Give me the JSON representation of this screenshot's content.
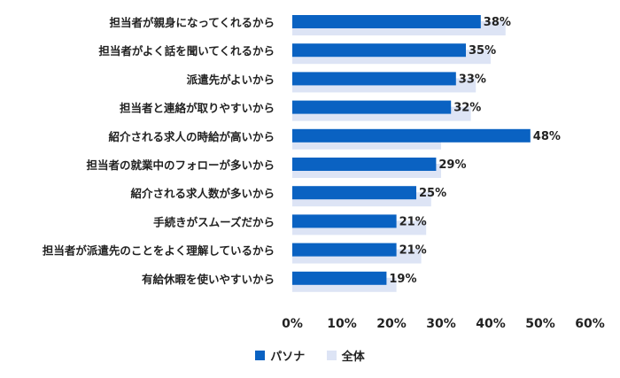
{
  "chart_data": {
    "type": "bar",
    "orientation": "horizontal",
    "categories": [
      "担当者が親身になってくれるから",
      "担当者がよく話を聞いてくれるから",
      "派遣先がよいから",
      "担当者と連絡が取りやすいから",
      "紹介される求人の時給が高いから",
      "担当者の就業中のフォローが多いから",
      "紹介される求人数が多いから",
      "手続きがスムーズだから",
      "担当者が派遣先のことをよく理解しているから",
      "有給休暇を使いやすいから"
    ],
    "series": [
      {
        "name": "パソナ",
        "color": "#0a62c2",
        "values": [
          38,
          35,
          33,
          32,
          48,
          29,
          25,
          21,
          21,
          19
        ],
        "labels": [
          "38%",
          "35%",
          "33%",
          "32%",
          "48%",
          "29%",
          "25%",
          "21%",
          "21%",
          "19%"
        ]
      },
      {
        "name": "全体",
        "color": "#dde4f5",
        "values": [
          43,
          40,
          37,
          36,
          30,
          30,
          28,
          27,
          26,
          21
        ]
      }
    ],
    "xlim": [
      0,
      60
    ],
    "x_ticks": [
      "0%",
      "10%",
      "20%",
      "30%",
      "40%",
      "50%",
      "60%"
    ],
    "grid": false,
    "legend_position": "bottom"
  }
}
